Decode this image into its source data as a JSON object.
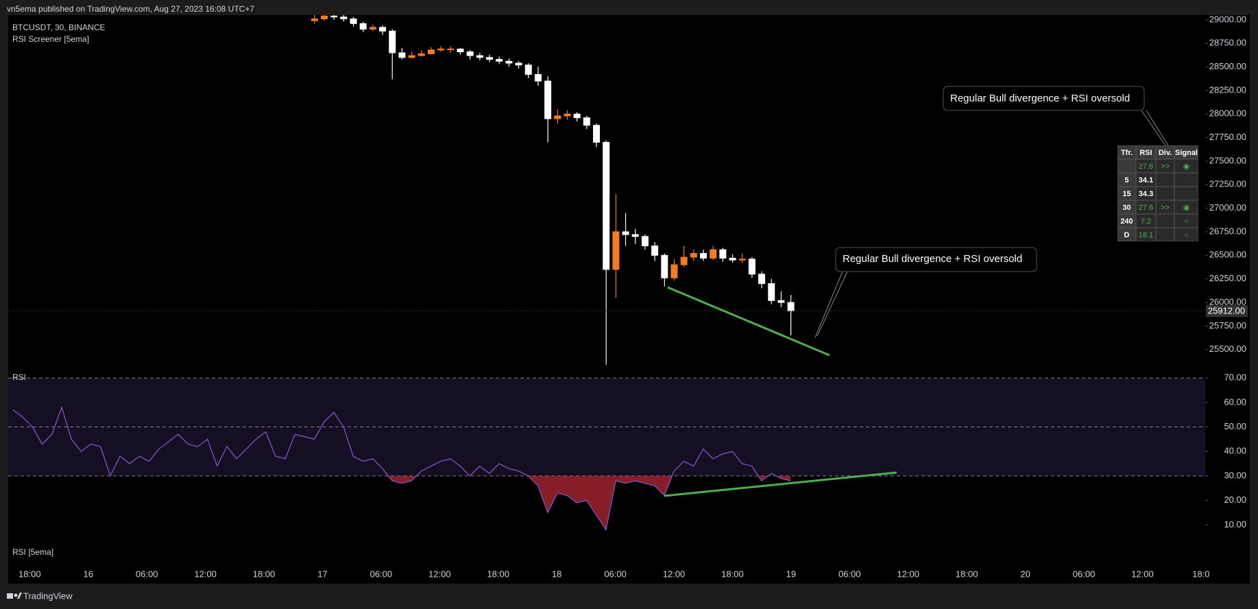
{
  "header": {
    "text": "vn5ema published on TradingView.com, Aug 27, 2023 16:08 UTC+7"
  },
  "footer": {
    "text": "TradingView"
  },
  "chart_data": [
    {
      "type": "candlestick",
      "title": "BTCUSDT, 30, BINANCE",
      "subtitle": "RSI Screener [5ema]",
      "up_color": "#f57c1f",
      "down_color": "#ffffff",
      "open": [
        28990,
        29010,
        29040,
        29030,
        29010,
        28960,
        28900,
        28920,
        28880,
        28650,
        28600,
        28620,
        28640,
        28680,
        28690,
        28690,
        28660,
        28620,
        28600,
        28580,
        28560,
        28540,
        28520,
        28420,
        28350,
        27950,
        27980,
        28000,
        27960,
        27880,
        27700,
        26350,
        26750,
        26720,
        26700,
        26600,
        26500,
        26260,
        26400,
        26480,
        26520,
        26470,
        26560,
        26470,
        26450,
        26460,
        26300,
        26200,
        26020,
        26000
      ],
      "high": [
        29060,
        29080,
        29060,
        29050,
        29030,
        28980,
        28950,
        28940,
        28900,
        28700,
        28660,
        28680,
        28710,
        28720,
        28720,
        28700,
        28680,
        28650,
        28630,
        28610,
        28590,
        28560,
        28540,
        28500,
        28400,
        28050,
        28040,
        28020,
        27980,
        27900,
        27720,
        27150,
        26950,
        26780,
        26720,
        26640,
        26520,
        26460,
        26600,
        26560,
        26560,
        26600,
        26580,
        26510,
        26520,
        26480,
        26330,
        26250,
        26120,
        26080
      ],
      "low": [
        28960,
        28990,
        29000,
        28980,
        28930,
        28870,
        28880,
        28840,
        28370,
        28580,
        28590,
        28610,
        28630,
        28660,
        28650,
        28630,
        28580,
        28570,
        28550,
        28530,
        28500,
        28480,
        28380,
        28300,
        27700,
        27900,
        27940,
        27920,
        27840,
        27650,
        25340,
        26050,
        26600,
        26620,
        26560,
        26440,
        26170,
        26230,
        26380,
        26440,
        26440,
        26450,
        26430,
        26420,
        26420,
        26260,
        26150,
        25980,
        25950,
        25650
      ],
      "close": [
        29010,
        29040,
        29030,
        29010,
        28960,
        28900,
        28920,
        28880,
        28650,
        28600,
        28620,
        28640,
        28680,
        28690,
        28690,
        28660,
        28620,
        28600,
        28580,
        28560,
        28540,
        28520,
        28420,
        28350,
        27950,
        27980,
        28000,
        27960,
        27880,
        27700,
        26350,
        26750,
        26720,
        26700,
        26600,
        26500,
        26260,
        26400,
        26480,
        26520,
        26470,
        26560,
        26470,
        26450,
        26460,
        26300,
        26200,
        26020,
        26000,
        25912
      ],
      "ylim": [
        25250,
        29050
      ],
      "yticks": [
        {
          "value": 25500,
          "label": "25500.00"
        },
        {
          "value": 25750,
          "label": "25750.00"
        },
        {
          "value": 26000,
          "label": "26000.00"
        },
        {
          "value": 26250,
          "label": "26250.00"
        },
        {
          "value": 26500,
          "label": "26500.00"
        },
        {
          "value": 26750,
          "label": "26750.00"
        },
        {
          "value": 27000,
          "label": "27000.00"
        },
        {
          "value": 27250,
          "label": "27250.00"
        },
        {
          "value": 27500,
          "label": "27500.00"
        },
        {
          "value": 27750,
          "label": "27750.00"
        },
        {
          "value": 28000,
          "label": "28000.00"
        },
        {
          "value": 28250,
          "label": "28250.00"
        },
        {
          "value": 28500,
          "label": "28500.00"
        },
        {
          "value": 28750,
          "label": "28750.00"
        },
        {
          "value": 29000,
          "label": "29000.00"
        }
      ],
      "last_price": {
        "value": 25912,
        "label": "25912.00"
      },
      "xtick_labels": [
        "18:00",
        "16",
        "06:00",
        "12:00",
        "18:00",
        "17",
        "06:00",
        "12:00",
        "18:00",
        "18",
        "06:00",
        "12:00",
        "18:00",
        "19",
        "06:00",
        "12:00",
        "18:00",
        "20",
        "06:00",
        "12:00",
        "18:0"
      ],
      "annotations": [
        "Regular Bull divergence + RSI oversold",
        "Regular Bull divergence + RSI oversold"
      ],
      "trendline_color": "#4caf50"
    },
    {
      "type": "line",
      "title": "RSI",
      "subtitle": "RSI [5ema]",
      "color": "#7e57c2",
      "oversold_color": "#b22833",
      "band_color": "#150f24",
      "values": [
        57,
        54,
        50,
        43,
        47,
        58,
        45,
        40,
        43,
        42,
        30,
        38,
        35,
        38,
        36,
        41,
        44,
        47,
        43,
        42,
        45,
        34,
        42,
        37,
        41,
        45,
        48,
        38,
        37,
        47,
        46,
        45,
        52,
        56,
        50,
        38,
        36,
        37,
        33,
        28,
        27,
        28,
        32,
        34,
        36,
        37,
        34,
        30,
        34,
        31,
        35,
        33,
        32,
        30,
        26,
        15,
        23,
        22,
        19,
        20,
        14,
        8,
        28,
        27,
        28,
        27,
        26,
        22,
        32,
        36,
        34,
        41,
        37,
        39,
        40,
        35,
        34,
        28,
        31,
        29,
        28
      ],
      "ylim": [
        -7,
        72
      ],
      "yticks": [
        {
          "value": 10,
          "label": "10.00"
        },
        {
          "value": 20,
          "label": "20.00"
        },
        {
          "value": 30,
          "label": "30.00"
        },
        {
          "value": 40,
          "label": "40.00"
        },
        {
          "value": 50,
          "label": "50.00"
        },
        {
          "value": 60,
          "label": "60.00"
        },
        {
          "value": 70,
          "label": "70.00"
        }
      ],
      "levels": [
        70,
        50,
        30
      ]
    }
  ],
  "screener": {
    "header": [
      "Tfr.",
      "RSI",
      "Div.",
      "Signal"
    ],
    "rows": [
      [
        null,
        "27.6",
        ">>",
        "◉"
      ],
      [
        "5",
        "34.1",
        null,
        null
      ],
      [
        "15",
        "34.3",
        null,
        null
      ],
      [
        "30",
        "27.6",
        ">>",
        "◉"
      ],
      [
        "240",
        "7.2",
        null,
        "○"
      ],
      [
        "D",
        "18.1",
        null,
        "○"
      ]
    ]
  }
}
